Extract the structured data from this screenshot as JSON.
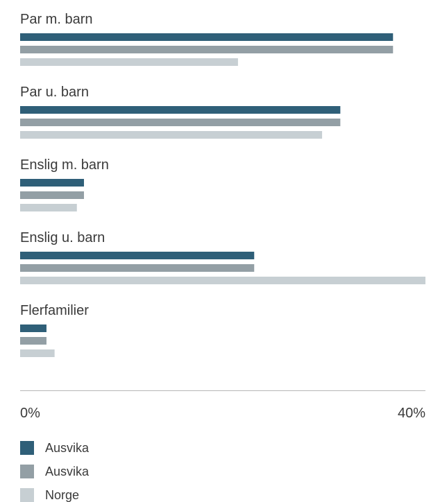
{
  "chart_data": {
    "type": "bar",
    "orientation": "horizontal",
    "categories": [
      "Par m. barn",
      "Par u. barn",
      "Enslig m. barn",
      "Enslig u. barn",
      "Flerfamilier"
    ],
    "series": [
      {
        "name": "Ausvika",
        "color": "#2f5f78",
        "values": [
          36.8,
          31.6,
          6.3,
          23.1,
          2.6
        ]
      },
      {
        "name": "Ausvika",
        "color": "#939fa5",
        "values": [
          36.8,
          31.6,
          6.3,
          23.1,
          2.6
        ]
      },
      {
        "name": "Norge",
        "color": "#c7cfd3",
        "values": [
          21.5,
          29.8,
          5.6,
          40.0,
          3.4
        ]
      }
    ],
    "xlim": [
      0,
      40
    ],
    "x_tick_labels": [
      "0%",
      "40%"
    ],
    "x_ticks": [
      0,
      40
    ],
    "legend_position": "bottom-left",
    "grid": false
  }
}
